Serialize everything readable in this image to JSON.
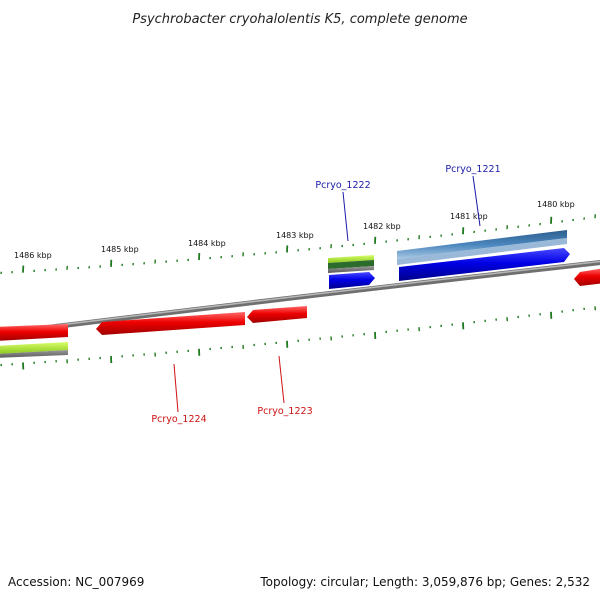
{
  "header": {
    "title": "Psychrobacter cryohalolentis K5, complete genome"
  },
  "footer": {
    "accession": "Accession: NC_007969",
    "summary": "Topology: circular; Length: 3,059,876 bp; Genes: 2,532"
  },
  "scale": {
    "labels": [
      "1486 kbp",
      "1485 kbp",
      "1484 kbp",
      "1483 kbp",
      "1482 kbp",
      "1481 kbp",
      "1480 kbp"
    ]
  },
  "genes": {
    "plus": [
      {
        "name": "Pcryo_1222",
        "color": "#1a1aa8"
      },
      {
        "name": "Pcryo_1221",
        "color": "#1a1aa8"
      }
    ],
    "minus": [
      {
        "name": "Pcryo_1224",
        "color": "#cc1111"
      },
      {
        "name": "Pcryo_1223",
        "color": "#cc1111"
      }
    ]
  },
  "colors": {
    "backbone": "#7d7d7d",
    "cds_plus": "#0000e0",
    "cds_minus": "#ee0000",
    "rna": "#2a6aa0",
    "misc_green": "#9bd22b",
    "tick": "#1e7a1e"
  }
}
